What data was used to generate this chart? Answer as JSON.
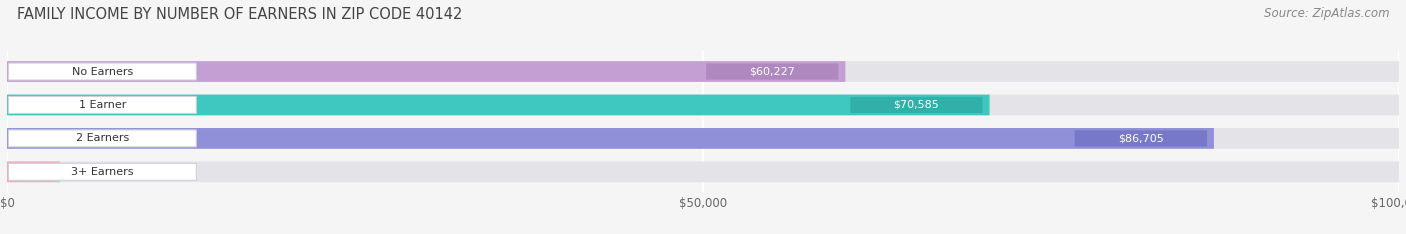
{
  "title": "FAMILY INCOME BY NUMBER OF EARNERS IN ZIP CODE 40142",
  "source": "Source: ZipAtlas.com",
  "categories": [
    "No Earners",
    "1 Earner",
    "2 Earners",
    "3+ Earners"
  ],
  "values": [
    60227,
    70585,
    86705,
    0
  ],
  "bar_colors": [
    "#c49fd4",
    "#3ec8c0",
    "#9090d8",
    "#f4a8bc"
  ],
  "xlim": [
    0,
    100000
  ],
  "xticks": [
    0,
    50000,
    100000
  ],
  "xtick_labels": [
    "$0",
    "$50,000",
    "$100,000"
  ],
  "background_color": "#f5f5f5",
  "bar_bg_color": "#e4e4e8",
  "title_fontsize": 10.5,
  "source_fontsize": 8.5,
  "bar_height": 0.62,
  "label_pill_color": "#ffffff",
  "value_label_pill_colors": [
    "#b088c0",
    "#30b0a8",
    "#7878c8",
    "#e898ac"
  ]
}
